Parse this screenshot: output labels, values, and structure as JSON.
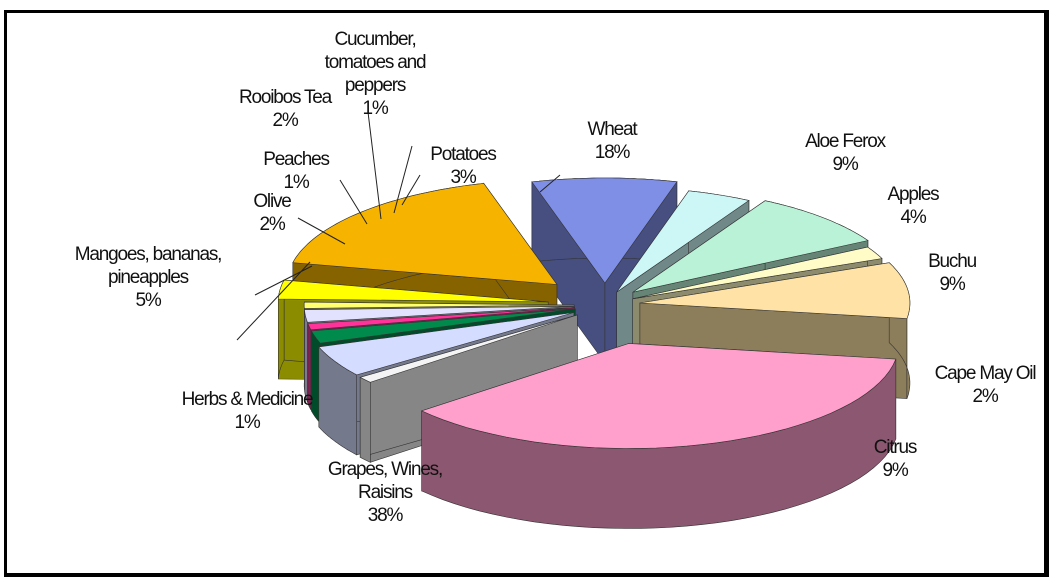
{
  "chart_data": {
    "type": "pie3d",
    "categories": [
      "Wheat",
      "Aloe Ferox",
      "Apples",
      "Buchu",
      "Cape May Oil",
      "Citrus",
      "Grapes, Wines, Raisins",
      "Herbs & Medicine",
      "Mangoes, bananas, pineapples",
      "Olive",
      "Peaches",
      "Rooibos Tea",
      "Cucumber, tomatoes and peppers",
      "Potatoes"
    ],
    "values": [
      18,
      9,
      4,
      9,
      2,
      9,
      38,
      1,
      5,
      2,
      1,
      2,
      1,
      3
    ],
    "value_labels": [
      "18%",
      "9%",
      "4%",
      "9%",
      "2%",
      "9%",
      "38%",
      "1%",
      "5%",
      "2%",
      "1%",
      "2%",
      "1%",
      "3%"
    ],
    "colors": [
      "#f6b400",
      "#7f8fe6",
      "#cdf7f7",
      "#b9f2d6",
      "#fffcc8",
      "#ffe3a6",
      "#ff9fcc",
      "#f4f4f4",
      "#d4dcff",
      "#008a4c",
      "#ff3399",
      "#e2e2ff",
      "#ffff70",
      "#ffff00"
    ]
  }
}
